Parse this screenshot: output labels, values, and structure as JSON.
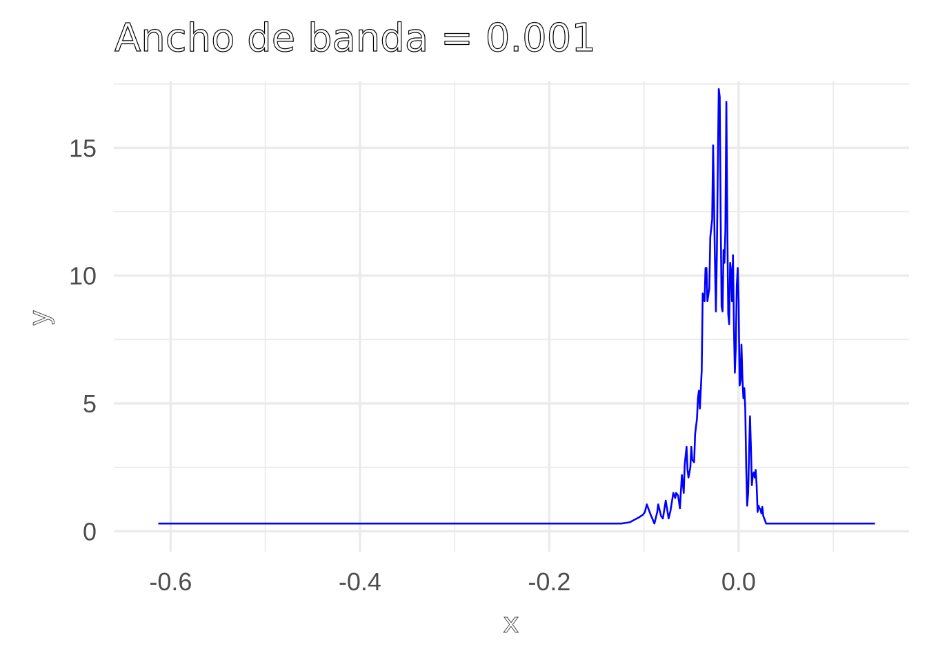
{
  "chart_data": {
    "type": "line",
    "title": "Ancho de banda = 0.001",
    "xlabel": "x",
    "ylabel": "y",
    "xlim": [
      -0.66,
      0.18
    ],
    "ylim": [
      -0.8,
      17.6
    ],
    "x_ticks": [
      -0.6,
      -0.4,
      -0.2,
      0.0
    ],
    "x_tick_labels": [
      "-0.6",
      "-0.4",
      "-0.2",
      "0.0"
    ],
    "y_ticks": [
      0,
      5,
      10,
      15
    ],
    "y_tick_labels": [
      "0",
      "5",
      "10",
      "15"
    ],
    "x_minor_ticks": [
      -0.5,
      -0.3,
      -0.1,
      0.1
    ],
    "y_minor_ticks": [
      2.5,
      7.5,
      12.5,
      17.5
    ],
    "grid": true,
    "legend": "none",
    "line_color": "#0000ff",
    "series": [
      {
        "x": [
          -0.613,
          -0.5,
          -0.4,
          -0.3,
          -0.2,
          -0.124,
          -0.115,
          -0.105,
          -0.101,
          -0.099,
          -0.097,
          -0.093,
          -0.089,
          -0.086,
          -0.085,
          -0.082,
          -0.08,
          -0.077,
          -0.074,
          -0.072,
          -0.069,
          -0.067,
          -0.066,
          -0.064,
          -0.062,
          -0.06,
          -0.058,
          -0.057,
          -0.055,
          -0.054,
          -0.053,
          -0.051,
          -0.05,
          -0.049,
          -0.047,
          -0.046,
          -0.044,
          -0.043,
          -0.042,
          -0.041,
          -0.039,
          -0.038,
          -0.037,
          -0.036,
          -0.035,
          -0.034,
          -0.033,
          -0.031,
          -0.03,
          -0.028,
          -0.027,
          -0.025,
          -0.024,
          -0.023,
          -0.022,
          -0.021,
          -0.02,
          -0.019,
          -0.018,
          -0.017,
          -0.016,
          -0.015,
          -0.014,
          -0.013,
          -0.012,
          -0.011,
          -0.01,
          -0.009,
          -0.008,
          -0.007,
          -0.006,
          -0.005,
          -0.004,
          -0.003,
          -0.002,
          -0.001,
          0.0,
          0.001,
          0.002,
          0.003,
          0.004,
          0.005,
          0.006,
          0.007,
          0.008,
          0.009,
          0.01,
          0.011,
          0.012,
          0.013,
          0.014,
          0.015,
          0.016,
          0.017,
          0.018,
          0.019,
          0.02,
          0.021,
          0.022,
          0.023,
          0.024,
          0.025,
          0.026,
          0.027,
          0.028,
          0.029,
          0.03,
          0.031,
          0.032,
          0.033,
          0.034,
          0.035,
          0.036,
          0.037,
          0.038,
          0.039,
          0.04,
          0.041,
          0.042,
          0.043,
          0.044,
          0.045,
          0.046,
          0.047,
          0.048,
          0.049,
          0.05,
          0.051,
          0.052,
          0.053,
          0.054,
          0.055,
          0.056,
          0.057,
          0.058,
          0.059,
          0.06,
          0.061,
          0.062,
          0.063,
          0.064,
          0.065,
          0.066,
          0.067,
          0.068,
          0.069,
          0.07,
          0.072,
          0.074,
          0.076,
          0.078,
          0.079,
          0.08,
          0.082,
          0.084,
          0.086,
          0.088,
          0.09,
          0.092,
          0.094,
          0.096,
          0.098,
          0.1,
          0.12,
          0.14,
          0.144
        ],
        "y": [
          0.3,
          0.3,
          0.3,
          0.3,
          0.3,
          0.3,
          0.35,
          0.55,
          0.65,
          0.75,
          1.05,
          0.65,
          0.3,
          0.75,
          1.05,
          0.6,
          0.5,
          1.2,
          0.5,
          0.8,
          1.5,
          1.3,
          1.5,
          1.4,
          0.9,
          2.2,
          1.5,
          2.6,
          3.3,
          2.4,
          2.1,
          2.5,
          3.3,
          2.8,
          2.7,
          3.8,
          4.4,
          5.2,
          5.5,
          4.8,
          6.3,
          9.3,
          9.2,
          9.0,
          10.3,
          10.3,
          9.0,
          9.5,
          11.5,
          12.2,
          15.1,
          10.5,
          8.6,
          11.0,
          14.2,
          17.3,
          17.0,
          12.5,
          8.8,
          8.6,
          11.0,
          10.5,
          11.8,
          16.8,
          12.0,
          8.5,
          8.1,
          10.5,
          10.2,
          9.0,
          10.8,
          8.0,
          6.2,
          7.2,
          9.6,
          10.3,
          9.0,
          5.7,
          5.9,
          7.3,
          6.0,
          5.2,
          5.6,
          4.8,
          2.5,
          1.0,
          1.5,
          3.0,
          4.5,
          3.2,
          1.8,
          2.2,
          2.3,
          2.1,
          2.4,
          1.8,
          0.75,
          1.0,
          0.9,
          0.85,
          0.7,
          0.95,
          0.6,
          0.5,
          0.4,
          0.3,
          0.3,
          0.3,
          0.3,
          0.3,
          0.3,
          0.3,
          0.3,
          0.3,
          0.3,
          0.3,
          0.3,
          0.3,
          0.3,
          0.3,
          0.3,
          0.3,
          0.3,
          0.3,
          0.3,
          0.3,
          0.3,
          0.3,
          0.3,
          0.3,
          0.3,
          0.3,
          0.3,
          0.3,
          0.3,
          0.3,
          0.3,
          0.3,
          0.3,
          0.3,
          0.3,
          0.3,
          0.3,
          0.3,
          0.3,
          0.3,
          0.3,
          0.3,
          0.3,
          0.3,
          0.3,
          0.3,
          0.3,
          0.3,
          0.3,
          0.3,
          0.3,
          0.3,
          0.3,
          0.3,
          0.3,
          0.3,
          0.3,
          0.3,
          0.3,
          0.3
        ]
      }
    ]
  }
}
